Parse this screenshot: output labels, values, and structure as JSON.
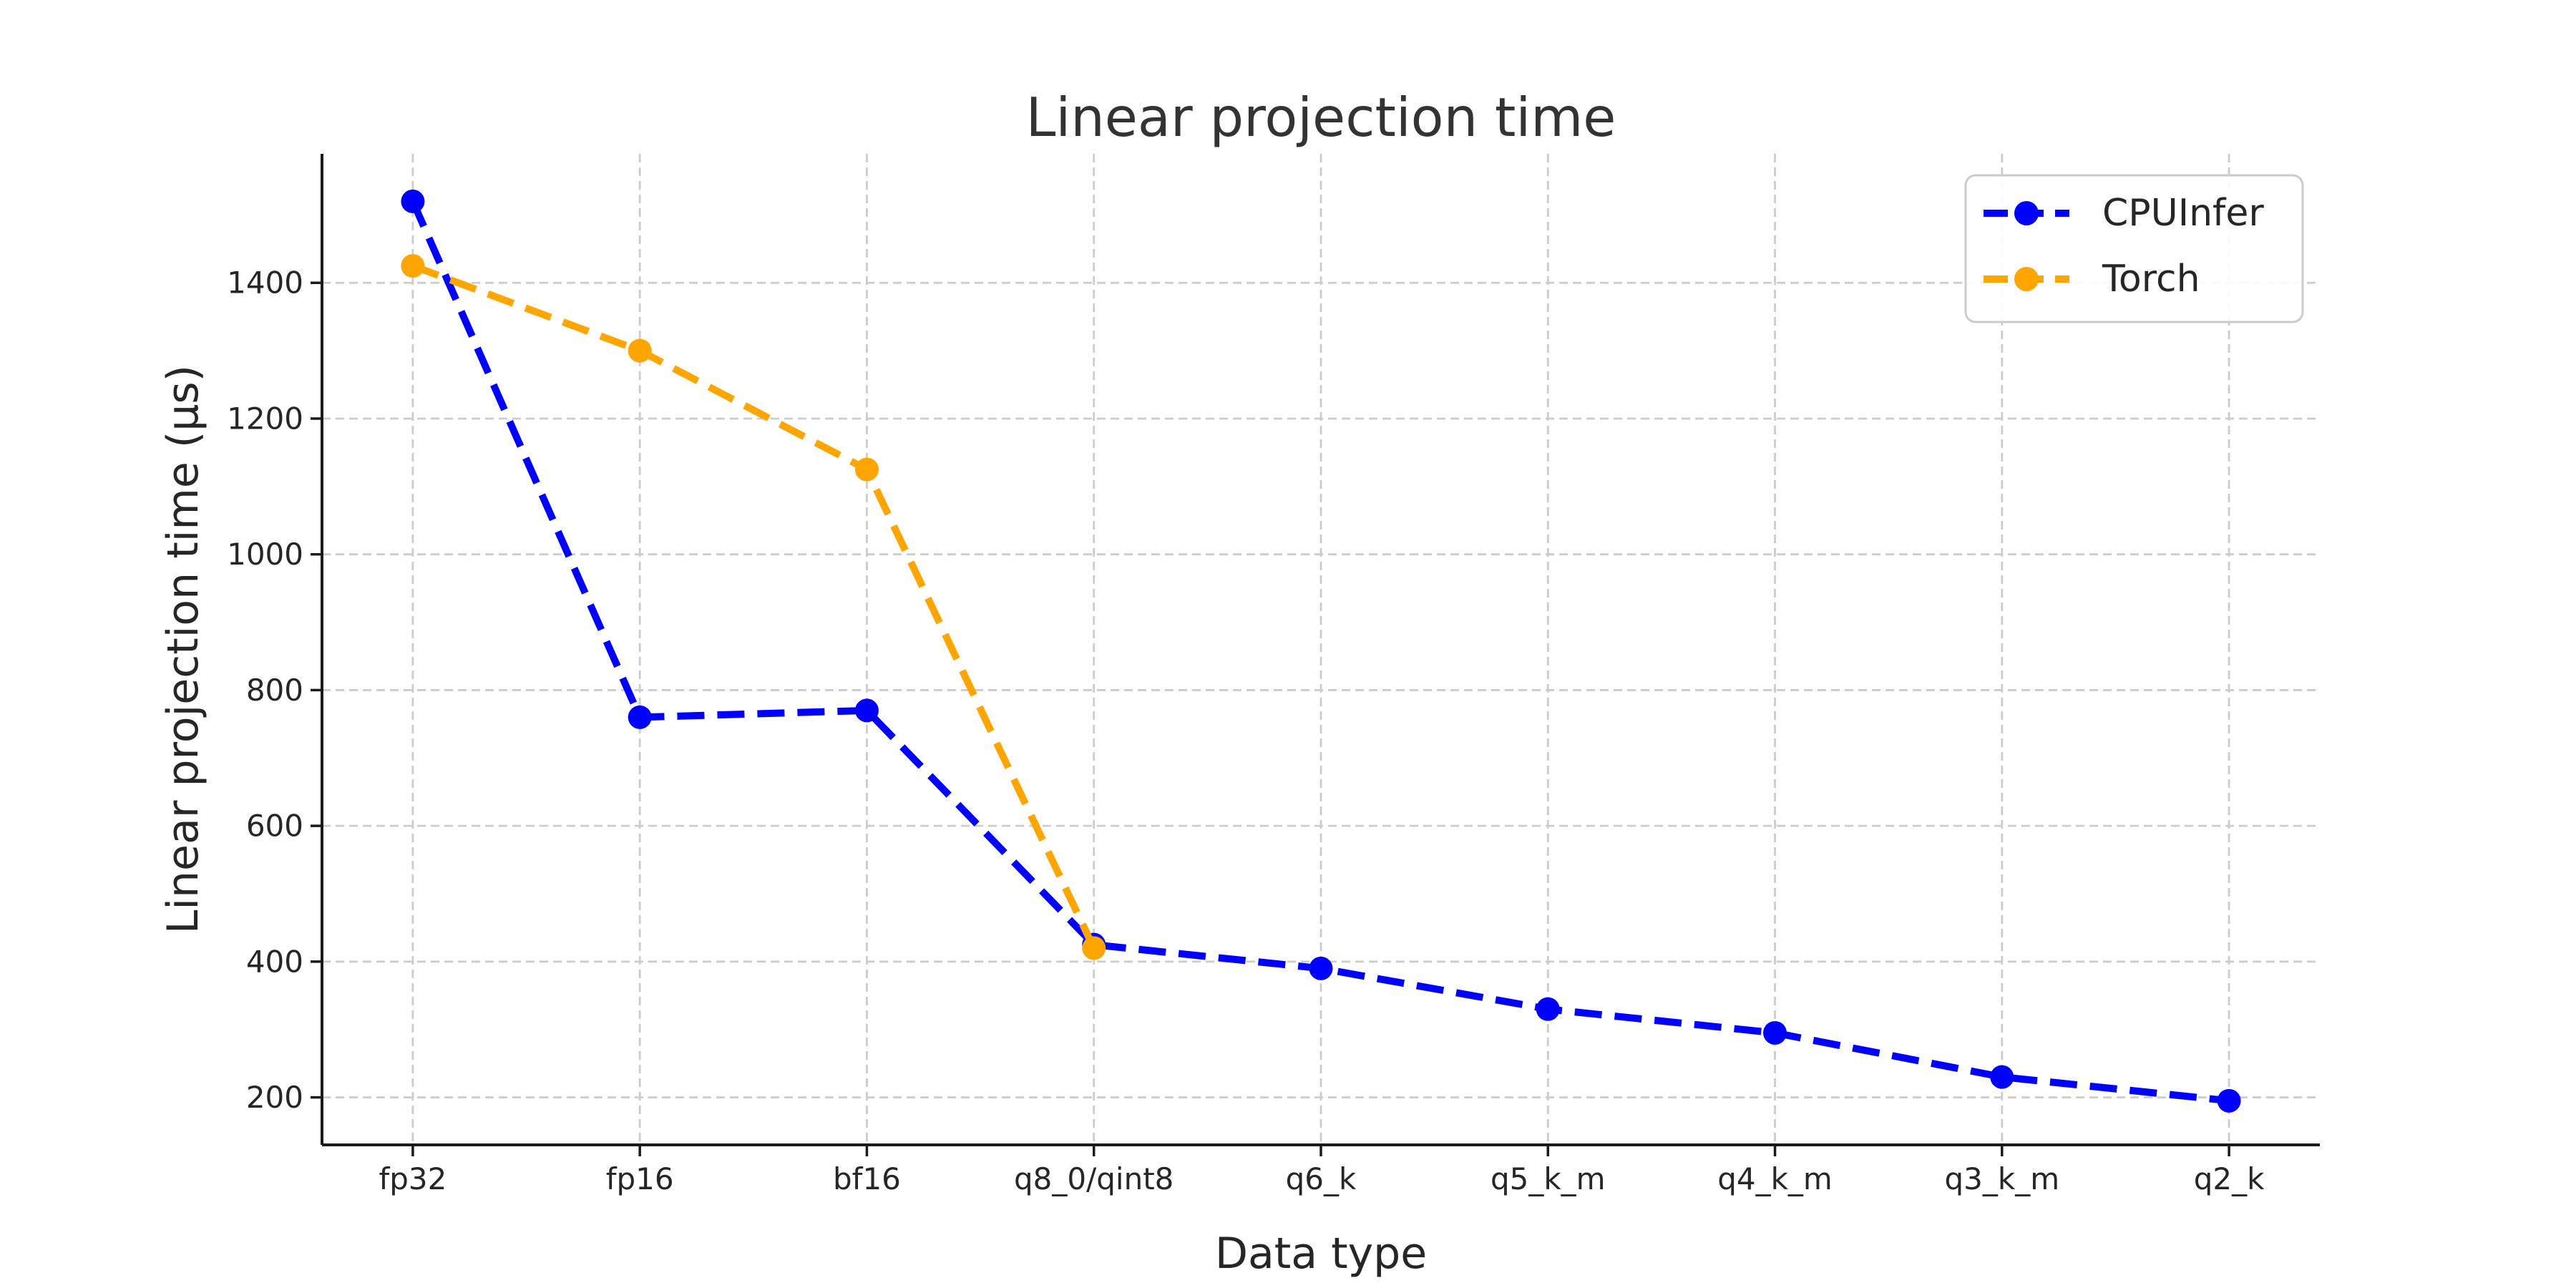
{
  "figure": {
    "background": "#ffffff",
    "grid_color": "#cccccc",
    "spine_color": "#1a1a1a",
    "text_color": "#262626"
  },
  "chart_data": {
    "type": "line",
    "title": "Linear projection time",
    "xlabel": "Data type",
    "ylabel": "Linear projection time (µs)",
    "categories": [
      "fp32",
      "fp16",
      "bf16",
      "q8_0/qint8",
      "q6_k",
      "q5_k_m",
      "q4_k_m",
      "q3_k_m",
      "q2_k"
    ],
    "ytick_values": [
      200,
      400,
      600,
      800,
      1000,
      1200,
      1400
    ],
    "ytick_labels": [
      "200",
      "400",
      "600",
      "800",
      "1000",
      "1200",
      "1400"
    ],
    "ylim": [
      130,
      1590
    ],
    "grid": true,
    "legend_position": "upper right",
    "units": "µs",
    "series": [
      {
        "name": "CPUInfer",
        "color": "#0000ff",
        "linestyle": "dashed",
        "marker": "circle",
        "values": [
          1520,
          760,
          770,
          425,
          390,
          330,
          295,
          230,
          195
        ]
      },
      {
        "name": "Torch",
        "color": "#ffa500",
        "linestyle": "dashed",
        "marker": "circle",
        "values": [
          1425,
          1300,
          1125,
          420,
          null,
          null,
          null,
          null,
          null
        ]
      }
    ]
  }
}
